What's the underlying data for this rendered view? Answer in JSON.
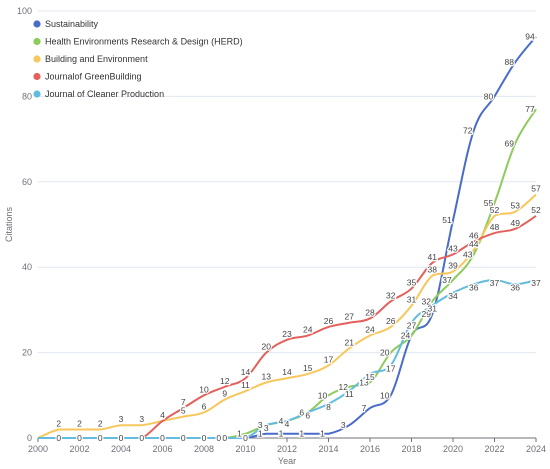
{
  "chart_data": {
    "type": "line",
    "xlabel": "Year",
    "ylabel": "Citations",
    "xlim": [
      2000,
      2024
    ],
    "ylim": [
      0,
      100
    ],
    "x_ticks": [
      "2000",
      "2002",
      "2004",
      "2006",
      "2008",
      "2010",
      "2012",
      "2014",
      "2016",
      "2018",
      "2020",
      "2022",
      "2024"
    ],
    "y_ticks": [
      "0",
      "20",
      "40",
      "60",
      "80",
      "100"
    ],
    "legend_position": "top-left",
    "grid": "horizontal",
    "x": [
      2000,
      2001,
      2002,
      2003,
      2004,
      2005,
      2006,
      2007,
      2008,
      2009,
      2010,
      2011,
      2012,
      2013,
      2014,
      2015,
      2016,
      2017,
      2018,
      2019,
      2020,
      2021,
      2022,
      2023,
      2024
    ],
    "series": [
      {
        "name": "Sustainability",
        "color": "#4a6cc9",
        "values": [
          0,
          0,
          0,
          0,
          0,
          0,
          0,
          0,
          0,
          0,
          0,
          1,
          1,
          1,
          1,
          3,
          7,
          10,
          24,
          29,
          51,
          72,
          80,
          88,
          94
        ],
        "labeled_years": [
          2011,
          2012,
          2013,
          2014,
          2015,
          2016,
          2017,
          2018,
          2019,
          2020,
          2021,
          2022,
          2023,
          2024
        ]
      },
      {
        "name": "Health Environments Research & Design (HERD)",
        "color": "#8dcb5b",
        "values": [
          0,
          0,
          0,
          0,
          0,
          0,
          0,
          0,
          0,
          0,
          1,
          3,
          4,
          6,
          10,
          12,
          13,
          20,
          24,
          32,
          37,
          43,
          55,
          69,
          77
        ],
        "labeled_years": [
          2009,
          2010,
          2011,
          2012,
          2013,
          2014,
          2015,
          2016,
          2017,
          2018,
          2019,
          2020,
          2021,
          2022,
          2023,
          2024
        ]
      },
      {
        "name": "Building and Environment",
        "color": "#f7c75b",
        "values": [
          0,
          2,
          2,
          2,
          3,
          3,
          4,
          5,
          6,
          9,
          11,
          13,
          14,
          15,
          17,
          21,
          24,
          26,
          31,
          38,
          39,
          44,
          52,
          53,
          57
        ],
        "labeled_years": [
          2001,
          2002,
          2003,
          2004,
          2005,
          2006,
          2007,
          2008,
          2009,
          2010,
          2011,
          2012,
          2013,
          2014,
          2015,
          2016,
          2017,
          2018,
          2019,
          2020,
          2021,
          2022,
          2023,
          2024
        ]
      },
      {
        "name": "Journalof GreenBuilding",
        "color": "#e4605c",
        "values": [
          0,
          0,
          0,
          0,
          0,
          0,
          4,
          7,
          10,
          12,
          14,
          20,
          23,
          24,
          26,
          27,
          28,
          32,
          35,
          41,
          43,
          46,
          48,
          49,
          52
        ],
        "labeled_years": [
          2006,
          2007,
          2008,
          2009,
          2010,
          2011,
          2012,
          2013,
          2014,
          2015,
          2016,
          2017,
          2018,
          2019,
          2020,
          2021,
          2022,
          2023,
          2024
        ]
      },
      {
        "name": "Journal of Cleaner Production",
        "color": "#63bcde",
        "values": [
          0,
          0,
          0,
          0,
          0,
          0,
          0,
          0,
          0,
          0,
          0,
          3,
          4,
          6,
          8,
          11,
          15,
          17,
          27,
          31,
          34,
          36,
          37,
          36,
          37
        ],
        "labeled_years": [
          2011,
          2012,
          2013,
          2014,
          2015,
          2016,
          2017,
          2018,
          2019,
          2020,
          2021,
          2022,
          2023,
          2024
        ]
      }
    ],
    "baseline_zero_labels": [
      {
        "year": 2001,
        "text": "0"
      },
      {
        "year": 2002,
        "text": "0"
      },
      {
        "year": 2003,
        "text": "0"
      },
      {
        "year": 2004,
        "text": "0"
      },
      {
        "year": 2005,
        "text": "0"
      },
      {
        "year": 2006,
        "text": "0"
      },
      {
        "year": 2007,
        "text": "0"
      },
      {
        "year": 2008,
        "text": "0"
      },
      {
        "year": 2009,
        "text": "0"
      },
      {
        "year": 2010,
        "text": "0"
      }
    ]
  }
}
